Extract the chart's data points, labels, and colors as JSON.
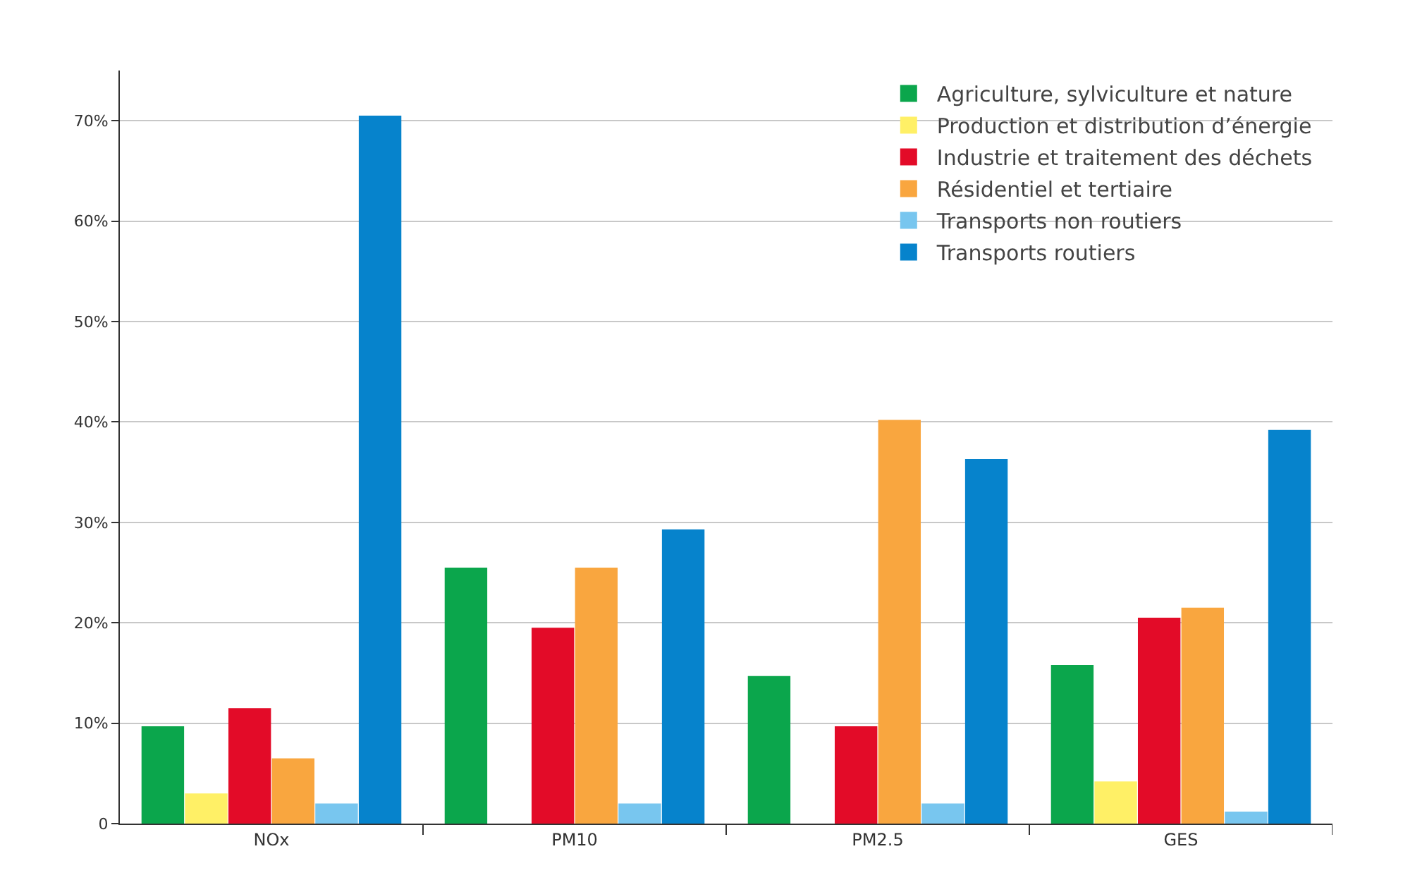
{
  "chart_data": {
    "type": "bar",
    "categories": [
      "NOx",
      "PM10",
      "PM2.5",
      "GES"
    ],
    "series": [
      {
        "name": "Agriculture, sylviculture et nature",
        "color": "#0ba64c",
        "values": [
          9.7,
          25.5,
          14.7,
          15.8
        ]
      },
      {
        "name": "Production et distribution d’énergie",
        "color": "#fff066",
        "values": [
          3,
          null,
          null,
          4.2
        ]
      },
      {
        "name": "Industrie et traitement des déchets",
        "color": "#e30b28",
        "values": [
          11.5,
          19.5,
          9.7,
          20.5
        ]
      },
      {
        "name": "Résidentiel et tertiaire",
        "color": "#f9a63f",
        "values": [
          6.5,
          25.5,
          40.2,
          21.5
        ]
      },
      {
        "name": "Transports non routiers",
        "color": "#78c6ef",
        "values": [
          2,
          2,
          2,
          1.2
        ]
      },
      {
        "name": "Transports routiers",
        "color": "#0683cc",
        "values": [
          70.5,
          29.3,
          36.3,
          39.2
        ]
      }
    ],
    "ylim": [
      0,
      75
    ],
    "yticks": [
      {
        "value": 0,
        "label": "0"
      },
      {
        "value": 10,
        "label": "10%"
      },
      {
        "value": 20,
        "label": "20%"
      },
      {
        "value": 30,
        "label": "30%"
      },
      {
        "value": 40,
        "label": "40%"
      },
      {
        "value": 50,
        "label": "50%"
      },
      {
        "value": 60,
        "label": "60%"
      },
      {
        "value": 70,
        "label": "70%"
      }
    ],
    "grid": "y",
    "legend": "top right"
  }
}
